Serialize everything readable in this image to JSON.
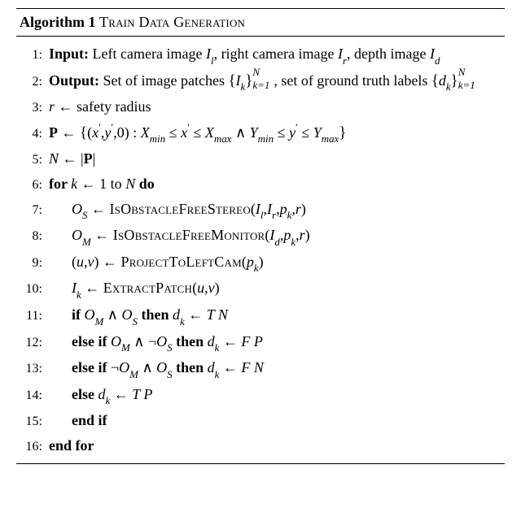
{
  "algorithm": {
    "number_label": "Algorithm 1",
    "title": "Train Data Generation",
    "title_fontsize": 18,
    "body_fontsize": 18,
    "font_family": "Times New Roman, serif",
    "rule_color": "#000000",
    "background_color": "#ffffff",
    "lines": [
      {
        "n": "1:",
        "indent": 0,
        "parts": [
          {
            "t": "Input: ",
            "bold": true
          },
          {
            "t": "Left camera image "
          },
          {
            "t": "I",
            "it": true
          },
          {
            "t": "l",
            "sub": true,
            "it": true
          },
          {
            "t": ", right camera image "
          },
          {
            "t": "I",
            "it": true
          },
          {
            "t": "r",
            "sub": true,
            "it": true
          },
          {
            "t": ", depth image "
          },
          {
            "t": "I",
            "it": true
          },
          {
            "t": "d",
            "sub": true,
            "it": true
          }
        ]
      },
      {
        "n": "2:",
        "indent": 0,
        "parts": [
          {
            "t": "Output: ",
            "bold": true
          },
          {
            "t": "Set of image patches "
          },
          {
            "t": "{",
            "lbrace": true
          },
          {
            "t": "I",
            "it": true
          },
          {
            "t": "k",
            "sub": true,
            "it": true
          },
          {
            "t": "}",
            "lbrace": true
          },
          {
            "subsup": true,
            "sup": "N",
            "sub": "k=1",
            "it": true
          },
          {
            "t": ", set of ground truth labels "
          },
          {
            "t": "{",
            "lbrace": true
          },
          {
            "t": "d",
            "it": true
          },
          {
            "t": "k",
            "sub": true,
            "it": true
          },
          {
            "t": "}",
            "lbrace": true
          },
          {
            "subsup": true,
            "sup": "N",
            "sub": "k=1",
            "it": true
          }
        ]
      },
      {
        "n": "3:",
        "indent": 0,
        "parts": [
          {
            "t": "r",
            "it": true
          },
          {
            "t": " ← safety radius"
          }
        ]
      },
      {
        "n": "4:",
        "indent": 0,
        "parts": [
          {
            "t": "P",
            "bold": true
          },
          {
            "t": " ← "
          },
          {
            "t": "{",
            "lbrace": true
          },
          {
            "t": "("
          },
          {
            "t": "x",
            "it": true
          },
          {
            "t": "′",
            "sup": true
          },
          {
            "t": ","
          },
          {
            "t": "y",
            "it": true
          },
          {
            "t": "′",
            "sup": true
          },
          {
            "t": ","
          },
          {
            "t": "0"
          },
          {
            "t": ")"
          },
          {
            "t": " : "
          },
          {
            "t": "X",
            "it": true
          },
          {
            "t": "min",
            "sub": true,
            "it": true
          },
          {
            "t": " ≤ "
          },
          {
            "t": "x",
            "it": true
          },
          {
            "t": "′",
            "sup": true
          },
          {
            "t": " ≤ "
          },
          {
            "t": "X",
            "it": true
          },
          {
            "t": "max",
            "sub": true,
            "it": true
          },
          {
            "t": " ∧ "
          },
          {
            "t": "Y",
            "it": true
          },
          {
            "t": "min",
            "sub": true,
            "it": true
          },
          {
            "t": " ≤ "
          },
          {
            "t": "y",
            "it": true
          },
          {
            "t": "′",
            "sup": true
          },
          {
            "t": " ≤ "
          },
          {
            "t": "Y",
            "it": true
          },
          {
            "t": "max",
            "sub": true,
            "it": true
          },
          {
            "t": "}",
            "lbrace": true
          }
        ]
      },
      {
        "n": "5:",
        "indent": 0,
        "parts": [
          {
            "t": "N",
            "it": true
          },
          {
            "t": " ← |"
          },
          {
            "t": "P",
            "bold": true
          },
          {
            "t": "|"
          }
        ]
      },
      {
        "n": "6:",
        "indent": 0,
        "parts": [
          {
            "t": "for ",
            "bold": true
          },
          {
            "t": "k",
            "it": true
          },
          {
            "t": " ← 1 to "
          },
          {
            "t": "N",
            "it": true
          },
          {
            "t": " "
          },
          {
            "t": "do",
            "bold": true
          }
        ]
      },
      {
        "n": "7:",
        "indent": 1,
        "parts": [
          {
            "t": "O",
            "it": true
          },
          {
            "t": "S",
            "sub": true,
            "it": true
          },
          {
            "t": " ← "
          },
          {
            "t": "IsObstacleFreeStereo",
            "sc": true
          },
          {
            "t": "("
          },
          {
            "t": "I",
            "it": true
          },
          {
            "t": "l",
            "sub": true,
            "it": true
          },
          {
            "t": ","
          },
          {
            "t": "I",
            "it": true
          },
          {
            "t": "r",
            "sub": true,
            "it": true
          },
          {
            "t": ","
          },
          {
            "t": "p",
            "it": true
          },
          {
            "t": "k",
            "sub": true,
            "it": true
          },
          {
            "t": ","
          },
          {
            "t": "r",
            "it": true
          },
          {
            "t": ")"
          }
        ]
      },
      {
        "n": "8:",
        "indent": 1,
        "parts": [
          {
            "t": "O",
            "it": true
          },
          {
            "t": "M",
            "sub": true,
            "it": true
          },
          {
            "t": " ← "
          },
          {
            "t": "IsObstacleFreeMonitor",
            "sc": true
          },
          {
            "t": "("
          },
          {
            "t": "I",
            "it": true
          },
          {
            "t": "d",
            "sub": true,
            "it": true
          },
          {
            "t": ","
          },
          {
            "t": "p",
            "it": true
          },
          {
            "t": "k",
            "sub": true,
            "it": true
          },
          {
            "t": ","
          },
          {
            "t": "r",
            "it": true
          },
          {
            "t": ")"
          }
        ]
      },
      {
        "n": "9:",
        "indent": 1,
        "parts": [
          {
            "t": "("
          },
          {
            "t": "u",
            "it": true
          },
          {
            "t": ","
          },
          {
            "t": "v",
            "it": true
          },
          {
            "t": ")"
          },
          {
            "t": " ← "
          },
          {
            "t": "ProjectToLeftCam",
            "sc": true
          },
          {
            "t": "("
          },
          {
            "t": "p",
            "it": true
          },
          {
            "t": "k",
            "sub": true,
            "it": true
          },
          {
            "t": ")"
          }
        ]
      },
      {
        "n": "10:",
        "indent": 1,
        "parts": [
          {
            "t": "I",
            "it": true
          },
          {
            "t": "k",
            "sub": true,
            "it": true
          },
          {
            "t": " ← "
          },
          {
            "t": "ExtractPatch",
            "sc": true
          },
          {
            "t": "("
          },
          {
            "t": "u",
            "it": true
          },
          {
            "t": ","
          },
          {
            "t": "v",
            "it": true
          },
          {
            "t": ")"
          }
        ]
      },
      {
        "n": "11:",
        "indent": 1,
        "parts": [
          {
            "t": "if ",
            "bold": true
          },
          {
            "t": "O",
            "it": true
          },
          {
            "t": "M",
            "sub": true,
            "it": true
          },
          {
            "t": " ∧ "
          },
          {
            "t": "O",
            "it": true
          },
          {
            "t": "S",
            "sub": true,
            "it": true
          },
          {
            "t": " "
          },
          {
            "t": "then",
            "bold": true
          },
          {
            "t": "    "
          },
          {
            "t": "d",
            "it": true
          },
          {
            "t": "k",
            "sub": true,
            "it": true
          },
          {
            "t": " ← "
          },
          {
            "t": "T N",
            "it": true
          }
        ]
      },
      {
        "n": "12:",
        "indent": 1,
        "parts": [
          {
            "t": "else if ",
            "bold": true
          },
          {
            "t": "O",
            "it": true
          },
          {
            "t": "M",
            "sub": true,
            "it": true
          },
          {
            "t": " ∧ ¬"
          },
          {
            "t": "O",
            "it": true
          },
          {
            "t": "S",
            "sub": true,
            "it": true
          },
          {
            "t": " "
          },
          {
            "t": "then",
            "bold": true
          },
          {
            "t": "    "
          },
          {
            "t": "d",
            "it": true
          },
          {
            "t": "k",
            "sub": true,
            "it": true
          },
          {
            "t": " ← "
          },
          {
            "t": "F P",
            "it": true
          }
        ]
      },
      {
        "n": "13:",
        "indent": 1,
        "parts": [
          {
            "t": "else if ",
            "bold": true
          },
          {
            "t": "¬"
          },
          {
            "t": "O",
            "it": true
          },
          {
            "t": "M",
            "sub": true,
            "it": true
          },
          {
            "t": " ∧ "
          },
          {
            "t": "O",
            "it": true
          },
          {
            "t": "S",
            "sub": true,
            "it": true
          },
          {
            "t": " "
          },
          {
            "t": "then",
            "bold": true
          },
          {
            "t": "    "
          },
          {
            "t": "d",
            "it": true
          },
          {
            "t": "k",
            "sub": true,
            "it": true
          },
          {
            "t": " ← "
          },
          {
            "t": "F N",
            "it": true
          }
        ]
      },
      {
        "n": "14:",
        "indent": 1,
        "parts": [
          {
            "t": "else",
            "bold": true
          },
          {
            "t": "    "
          },
          {
            "t": "d",
            "it": true
          },
          {
            "t": "k",
            "sub": true,
            "it": true
          },
          {
            "t": " ← "
          },
          {
            "t": "T P",
            "it": true
          }
        ]
      },
      {
        "n": "15:",
        "indent": 1,
        "parts": [
          {
            "t": "end if",
            "bold": true
          }
        ]
      },
      {
        "n": "16:",
        "indent": 0,
        "parts": [
          {
            "t": "end for",
            "bold": true
          }
        ]
      }
    ]
  }
}
